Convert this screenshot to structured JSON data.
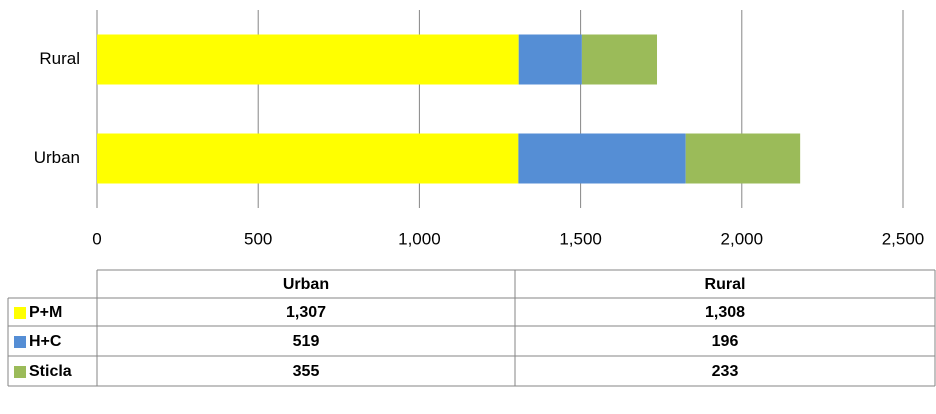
{
  "chart_data": {
    "type": "stacked-bar-horizontal",
    "categories": [
      "Urban",
      "Rural"
    ],
    "series": [
      {
        "name": "P+M",
        "color": "#ffff00",
        "values": [
          1307,
          1308
        ],
        "value_labels": [
          "1,307",
          "1,308"
        ]
      },
      {
        "name": "H+C",
        "color": "#558ed5",
        "values": [
          519,
          196
        ],
        "value_labels": [
          "519",
          "196"
        ]
      },
      {
        "name": "Sticla",
        "color": "#9bbb59",
        "values": [
          355,
          233
        ],
        "value_labels": [
          "355",
          "233"
        ]
      }
    ],
    "xlim": [
      0,
      2500
    ],
    "xticks": [
      0,
      500,
      {
        "value": 1000,
        "label": "1,000"
      },
      {
        "value": 1500,
        "label": "1,500"
      },
      {
        "value": 2000,
        "label": "2,000"
      },
      {
        "value": 2500,
        "label": "2,500"
      }
    ],
    "grid": true
  }
}
